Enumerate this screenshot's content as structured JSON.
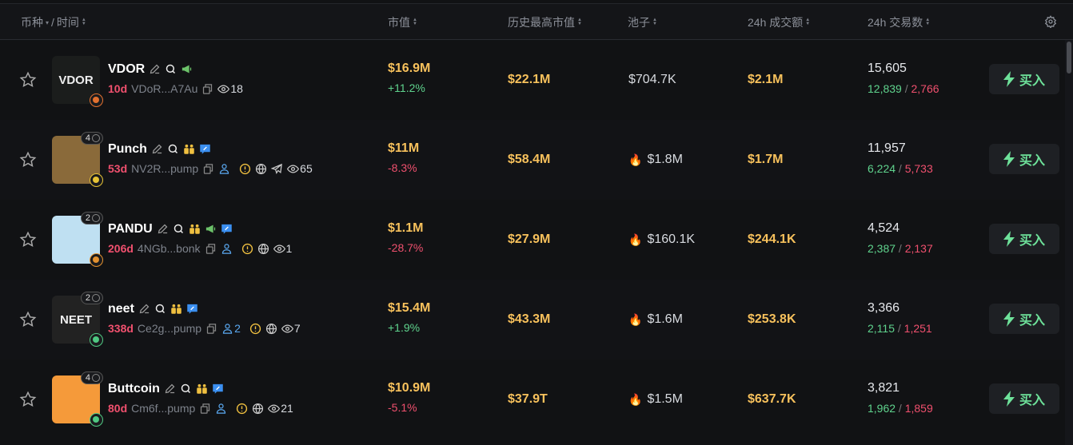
{
  "header": {
    "coin": "币种",
    "sep": "/",
    "time": "时间",
    "mcap": "市值",
    "ath": "历史最高市值",
    "pool": "池子",
    "vol": "24h 成交额",
    "txns": "24h 交易数"
  },
  "colors": {
    "accent_green": "#5fd38d",
    "accent_red": "#f0506e",
    "gold": "#f7c15c",
    "twitter_blue": "#3b8ff0"
  },
  "buy_label": "买入",
  "rows": [
    {
      "name": "VDOR",
      "age": "10d",
      "address": "VDoR...A7Au",
      "icons_top": [
        "edit",
        "search",
        "megaphone"
      ],
      "icons_bottom": [
        "copy",
        "eye"
      ],
      "holders": "",
      "views": "18",
      "count": "",
      "launchpad_color": "#e3712f",
      "mcap": "$16.9M",
      "change": "+11.2%",
      "dir": "up",
      "ath": "$22.1M",
      "pool": "$704.7K",
      "hot": false,
      "vol": "$2.1M",
      "txns": "15,605",
      "buys": "12,839",
      "sells": "2,766",
      "avatar_bg": "#1b1d1c",
      "avatar_text": "VDOR"
    },
    {
      "name": "Punch",
      "age": "53d",
      "address": "NV2R...pump",
      "icons_top": [
        "edit",
        "search",
        "people",
        "twitter"
      ],
      "icons_bottom": [
        "copy",
        "user",
        "warning",
        "globe",
        "telegram",
        "eye"
      ],
      "holders": "",
      "views": "65",
      "count": "4",
      "launchpad_color": "#e6c335",
      "mcap": "$11M",
      "change": "-8.3%",
      "dir": "down",
      "ath": "$58.4M",
      "pool": "$1.8M",
      "hot": true,
      "vol": "$1.7M",
      "txns": "11,957",
      "buys": "6,224",
      "sells": "5,733",
      "avatar_bg": "#8a6a3a",
      "avatar_text": ""
    },
    {
      "name": "PANDU",
      "age": "206d",
      "address": "4NGb...bonk",
      "icons_top": [
        "edit",
        "search",
        "people",
        "megaphone",
        "twitter"
      ],
      "icons_bottom": [
        "copy",
        "user",
        "warning",
        "globe",
        "eye"
      ],
      "holders": "",
      "views": "1",
      "count": "2",
      "launchpad_color": "#e3912f",
      "mcap": "$1.1M",
      "change": "-28.7%",
      "dir": "down",
      "ath": "$27.9M",
      "pool": "$160.1K",
      "hot": true,
      "vol": "$244.1K",
      "txns": "4,524",
      "buys": "2,387",
      "sells": "2,137",
      "avatar_bg": "#bfe0f2",
      "avatar_text": ""
    },
    {
      "name": "neet",
      "age": "338d",
      "address": "Ce2g...pump",
      "icons_top": [
        "edit",
        "search",
        "people",
        "twitter"
      ],
      "icons_bottom": [
        "copy",
        "user",
        "warning",
        "globe",
        "eye"
      ],
      "holders": "2",
      "views": "7",
      "count": "2",
      "launchpad_color": "#4fc982",
      "mcap": "$15.4M",
      "change": "+1.9%",
      "dir": "up",
      "ath": "$43.3M",
      "pool": "$1.6M",
      "hot": true,
      "vol": "$253.8K",
      "txns": "3,366",
      "buys": "2,115",
      "sells": "1,251",
      "avatar_bg": "#222",
      "avatar_text": "NEET"
    },
    {
      "name": "Buttcoin",
      "age": "80d",
      "address": "Cm6f...pump",
      "icons_top": [
        "edit",
        "search",
        "people",
        "twitter"
      ],
      "icons_bottom": [
        "copy",
        "user",
        "warning",
        "globe",
        "eye"
      ],
      "holders": "",
      "views": "21",
      "count": "4",
      "launchpad_color": "#4fc982",
      "mcap": "$10.9M",
      "change": "-5.1%",
      "dir": "down",
      "ath": "$37.9T",
      "pool": "$1.5M",
      "hot": true,
      "vol": "$637.7K",
      "txns": "3,821",
      "buys": "1,962",
      "sells": "1,859",
      "avatar_bg": "#f59a3a",
      "avatar_text": ""
    }
  ]
}
